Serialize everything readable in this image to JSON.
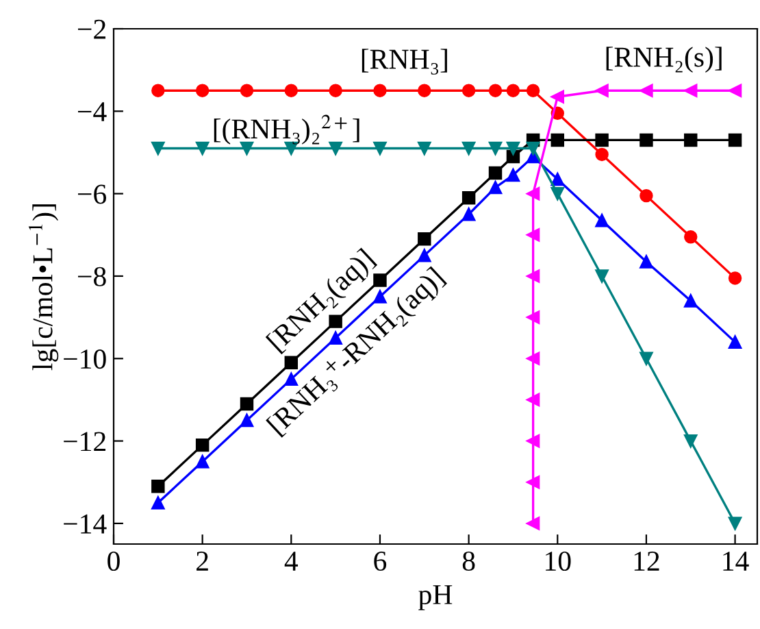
{
  "chart_data": {
    "type": "line",
    "xlabel": "pH",
    "ylabel": "lg[c/mol•L$^{−1}$)]",
    "xlim": [
      0,
      14.5
    ],
    "ylim": [
      -14.5,
      -2
    ],
    "xticks": [
      0,
      2,
      4,
      6,
      8,
      10,
      12,
      14
    ],
    "yticks": [
      -14,
      -12,
      -10,
      -8,
      -6,
      -4,
      -2
    ],
    "grid": false,
    "line_style": "solid",
    "series": [
      {
        "color": "#ff0000",
        "marker": "circle",
        "x": [
          1,
          2,
          3,
          4,
          5,
          6,
          7,
          8,
          8.6,
          9,
          9.45,
          10,
          11,
          12,
          13,
          14
        ],
        "values": [
          -3.5,
          -3.5,
          -3.5,
          -3.5,
          -3.5,
          -3.5,
          -3.5,
          -3.5,
          -3.5,
          -3.5,
          -3.5,
          -4.05,
          -5.05,
          -6.05,
          -7.05,
          -8.05
        ]
      },
      {
        "color": "#000000",
        "marker": "square",
        "x": [
          1,
          2,
          3,
          4,
          5,
          6,
          7,
          8,
          8.6,
          9,
          9.45,
          10,
          11,
          12,
          13,
          14
        ],
        "values": [
          -13.1,
          -12.1,
          -11.1,
          -10.1,
          -9.1,
          -8.1,
          -7.1,
          -6.1,
          -5.5,
          -5.1,
          -4.7,
          -4.7,
          -4.7,
          -4.7,
          -4.7,
          -4.7
        ]
      },
      {
        "color": "#0000ff",
        "marker": "triangle",
        "x": [
          1,
          2,
          3,
          4,
          5,
          6,
          7,
          8,
          8.6,
          9,
          9.45,
          10,
          11,
          12,
          13,
          14
        ],
        "values": [
          -13.5,
          -12.5,
          -11.5,
          -10.5,
          -9.5,
          -8.5,
          -7.5,
          -6.5,
          -5.85,
          -5.55,
          -5.1,
          -5.65,
          -6.65,
          -7.65,
          -8.6,
          -9.6
        ]
      },
      {
        "color": "#008080",
        "marker": "triangle-down",
        "x": [
          1,
          2,
          3,
          4,
          5,
          6,
          7,
          8,
          8.6,
          9,
          9.45,
          10,
          11,
          12,
          13,
          14
        ],
        "values": [
          -4.9,
          -4.9,
          -4.9,
          -4.9,
          -4.9,
          -4.9,
          -4.9,
          -4.9,
          -4.9,
          -4.9,
          -4.9,
          -6.0,
          -8.0,
          -10.0,
          -12.0,
          -14.0
        ]
      },
      {
        "color": "#ff00ff",
        "marker": "triangle-left",
        "x": [
          9.45,
          9.45,
          9.45,
          9.45,
          9.45,
          9.45,
          9.45,
          9.45,
          9.45,
          10,
          11,
          12,
          13,
          14
        ],
        "values": [
          -14,
          -13,
          -12,
          -11,
          -10,
          -9,
          -8,
          -7,
          -6,
          -3.65,
          -3.5,
          -3.5,
          -3.5,
          -3.5
        ]
      }
    ],
    "annotations": [
      "[RNH₃]",
      "[RNH₂(s)]",
      "[(RNH₃)₂$^{2+}$]",
      "[RNH₂(aq)]",
      "[RNH₃$^{+}$-RNH₂(aq)]"
    ]
  }
}
